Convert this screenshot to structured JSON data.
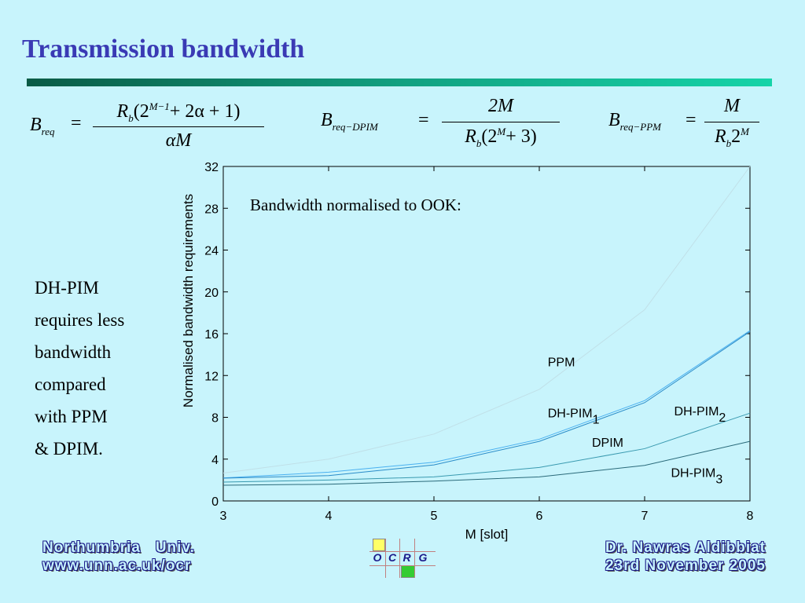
{
  "slide": {
    "title": "Transmission bandwidth",
    "side_text": [
      "DH-PIM",
      "requires less",
      "bandwidth",
      "compared",
      "with PPM",
      "& DPIM."
    ]
  },
  "formulas": {
    "f1": {
      "lhs": "B",
      "lhs_sub": "req",
      "num_a": "R",
      "num_a_sub": "b",
      "num_b": "(2",
      "num_sup": "M−1",
      "num_c": "+ 2α + 1)",
      "den": "αM"
    },
    "f2": {
      "lhs": "B",
      "lhs_sub": "req−DPIM",
      "num": "2M",
      "den_a": "R",
      "den_a_sub": "b",
      "den_b": "(2",
      "den_sup": "M",
      "den_c": "+ 3)"
    },
    "f3": {
      "lhs": "B",
      "lhs_sub": "req−PPM",
      "num": "M",
      "den_a": "R",
      "den_a_sub": "b",
      "den_b": "2",
      "den_sup": "M"
    },
    "eq": "="
  },
  "chart_data": {
    "type": "line",
    "annotation": "Bandwidth normalised to OOK:",
    "xlabel": "M [slot]",
    "ylabel": "Normalised bandwidth requirements",
    "xlim": [
      3,
      8
    ],
    "ylim": [
      0,
      32
    ],
    "x_ticks": [
      3,
      4,
      5,
      6,
      7,
      8
    ],
    "y_ticks": [
      0,
      4,
      8,
      12,
      16,
      20,
      24,
      28,
      32
    ],
    "x": [
      3,
      4,
      5,
      6,
      7,
      8
    ],
    "series": [
      {
        "name": "PPM",
        "values": [
          2.67,
          4.0,
          6.4,
          10.67,
          18.29,
          32.0
        ],
        "color": "#c0e0e8"
      },
      {
        "name": "DH-PIM1",
        "values": [
          2.2,
          2.75,
          3.7,
          5.9,
          9.6,
          16.3
        ],
        "color": "#4ab0f0"
      },
      {
        "name": "DPIM",
        "values": [
          2.18,
          2.42,
          3.45,
          5.7,
          9.4,
          16.2
        ],
        "color": "#2a8cc8"
      },
      {
        "name": "DH-PIM2",
        "values": [
          1.8,
          2.0,
          2.3,
          3.2,
          5.0,
          8.4
        ],
        "color": "#3a9ab0"
      },
      {
        "name": "DH-PIM3",
        "values": [
          1.5,
          1.6,
          1.9,
          2.3,
          3.4,
          5.7
        ],
        "color": "#2a6a7a"
      }
    ],
    "labels": [
      {
        "text": "PPM",
        "sub": "",
        "x": 6.08,
        "y": 12.9
      },
      {
        "text": "DH-PIM",
        "sub": "1",
        "x": 6.08,
        "y": 8.0
      },
      {
        "text": "DPIM",
        "sub": "",
        "x": 6.5,
        "y": 5.2
      },
      {
        "text": "DH-PIM",
        "sub": "2",
        "x": 7.28,
        "y": 8.2
      },
      {
        "text": "DH-PIM",
        "sub": "3",
        "x": 7.25,
        "y": 2.3
      }
    ]
  },
  "footer": {
    "left_line1": "Northumbria   Univ.",
    "left_line2": "www.unn.ac.uk/ocr",
    "right_line1": "Dr. Nawras Aldibbiat",
    "right_line2": "23rd November 2005",
    "logo_letters": [
      "O",
      "C",
      "R",
      "G"
    ],
    "logo_colors": {
      "top": "#ffff66",
      "bottom": "#33cc33",
      "text": "#1a1a8a"
    }
  }
}
